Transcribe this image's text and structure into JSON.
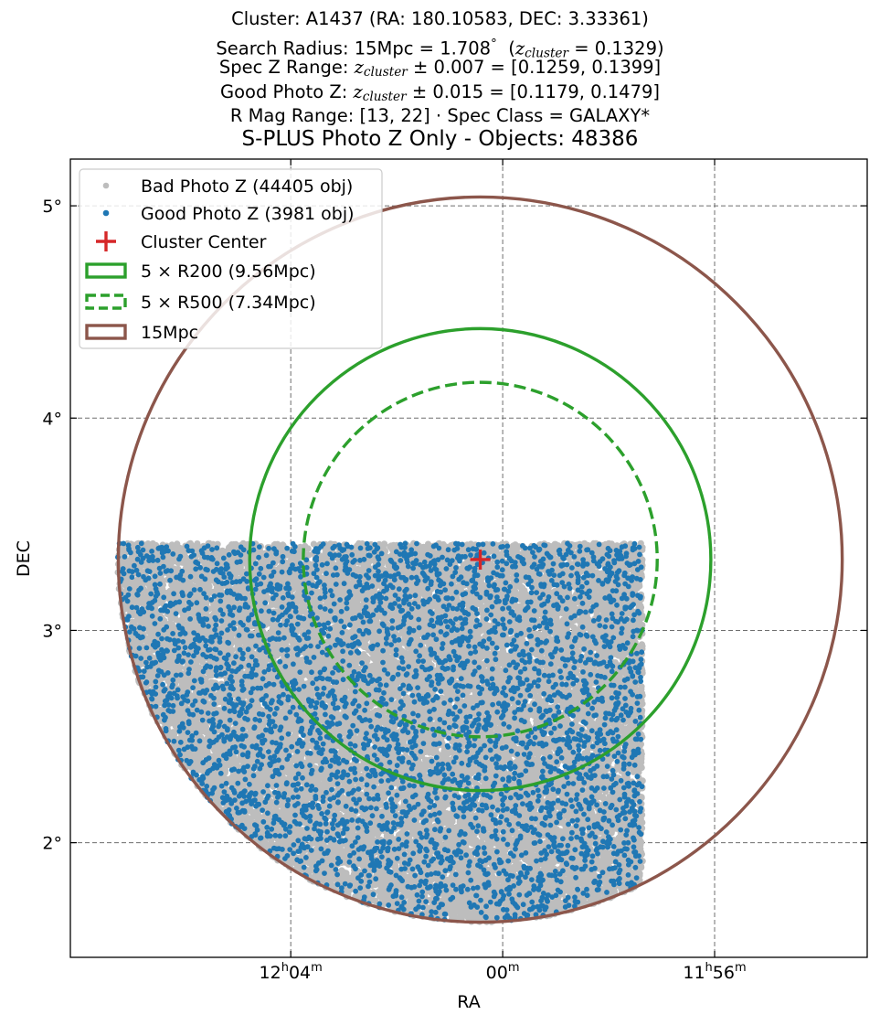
{
  "header": {
    "line1": "Cluster: A1437 (RA: 180.10583, DEC: 3.33361)",
    "line2_prefix": "Search Radius: 15Mpc = 1.708",
    "line2_deg": "°",
    "line2_zname": "z",
    "line2_zsub": "cluster",
    "line2_zval": " = 0.1329)",
    "line3_prefix": "Spec Z Range: ",
    "line3_zname": "z",
    "line3_zsub": "cluster",
    "line3_pm": " ± 0.007",
    "line3_suffix": " = [0.1259, 0.1399]",
    "line4_prefix": "Good Photo Z: ",
    "line4_zname": "z",
    "line4_zsub": "cluster",
    "line4_pm": " ± 0.015",
    "line4_suffix": " = [0.1179, 0.1479]",
    "line5": "R Mag Range: [13, 22] · Spec Class = GALAXY*"
  },
  "chart_data": {
    "type": "scatter",
    "title": "S-PLUS Photo Z Only - Objects: 48386",
    "xlabel": "RA",
    "ylabel": "DEC",
    "x_axis": {
      "unit": "deg",
      "inverted": true,
      "range": [
        182.04,
        178.28
      ],
      "ticks": [
        {
          "value": 181.0,
          "h": "12",
          "m": "04",
          "label": "12h04m"
        },
        {
          "value": 180.0,
          "h": "",
          "m": "00",
          "label": "00m"
        },
        {
          "value": 179.0,
          "h": "11",
          "m": "56",
          "label": "11h56m"
        }
      ]
    },
    "y_axis": {
      "unit": "deg",
      "range": [
        1.46,
        5.22
      ],
      "ticks": [
        {
          "value": 2,
          "label": "2°"
        },
        {
          "value": 3,
          "label": "3°"
        },
        {
          "value": 4,
          "label": "4°"
        },
        {
          "value": 5,
          "label": "5°"
        }
      ]
    },
    "grid": true,
    "legend_position": "top-left",
    "cluster_center": {
      "ra": 180.10583,
      "dec": 3.33361,
      "label": "Cluster Center",
      "color": "#d62728"
    },
    "footprint": {
      "dec_max": 3.41,
      "ra_max": 181.87,
      "ra_min": 179.34
    },
    "series": [
      {
        "name": "Bad Photo Z (44405 obj)",
        "kind": "points",
        "count": 44405,
        "color": "#bdbdbd",
        "rendered_sample": 20000
      },
      {
        "name": "Good Photo Z (3981 obj)",
        "kind": "points",
        "count": 3981,
        "color": "#1f77b4",
        "rendered_sample": 3981
      }
    ],
    "circles": [
      {
        "name": "5 × R200 (9.56Mpc)",
        "radius_deg": 1.088,
        "color": "#2ca02c",
        "style": "solid"
      },
      {
        "name": "5 × R500 (7.34Mpc)",
        "radius_deg": 0.835,
        "color": "#2ca02c",
        "style": "dashed"
      },
      {
        "name": "15Mpc",
        "radius_deg": 1.708,
        "color": "#8c564b",
        "style": "solid"
      }
    ]
  }
}
